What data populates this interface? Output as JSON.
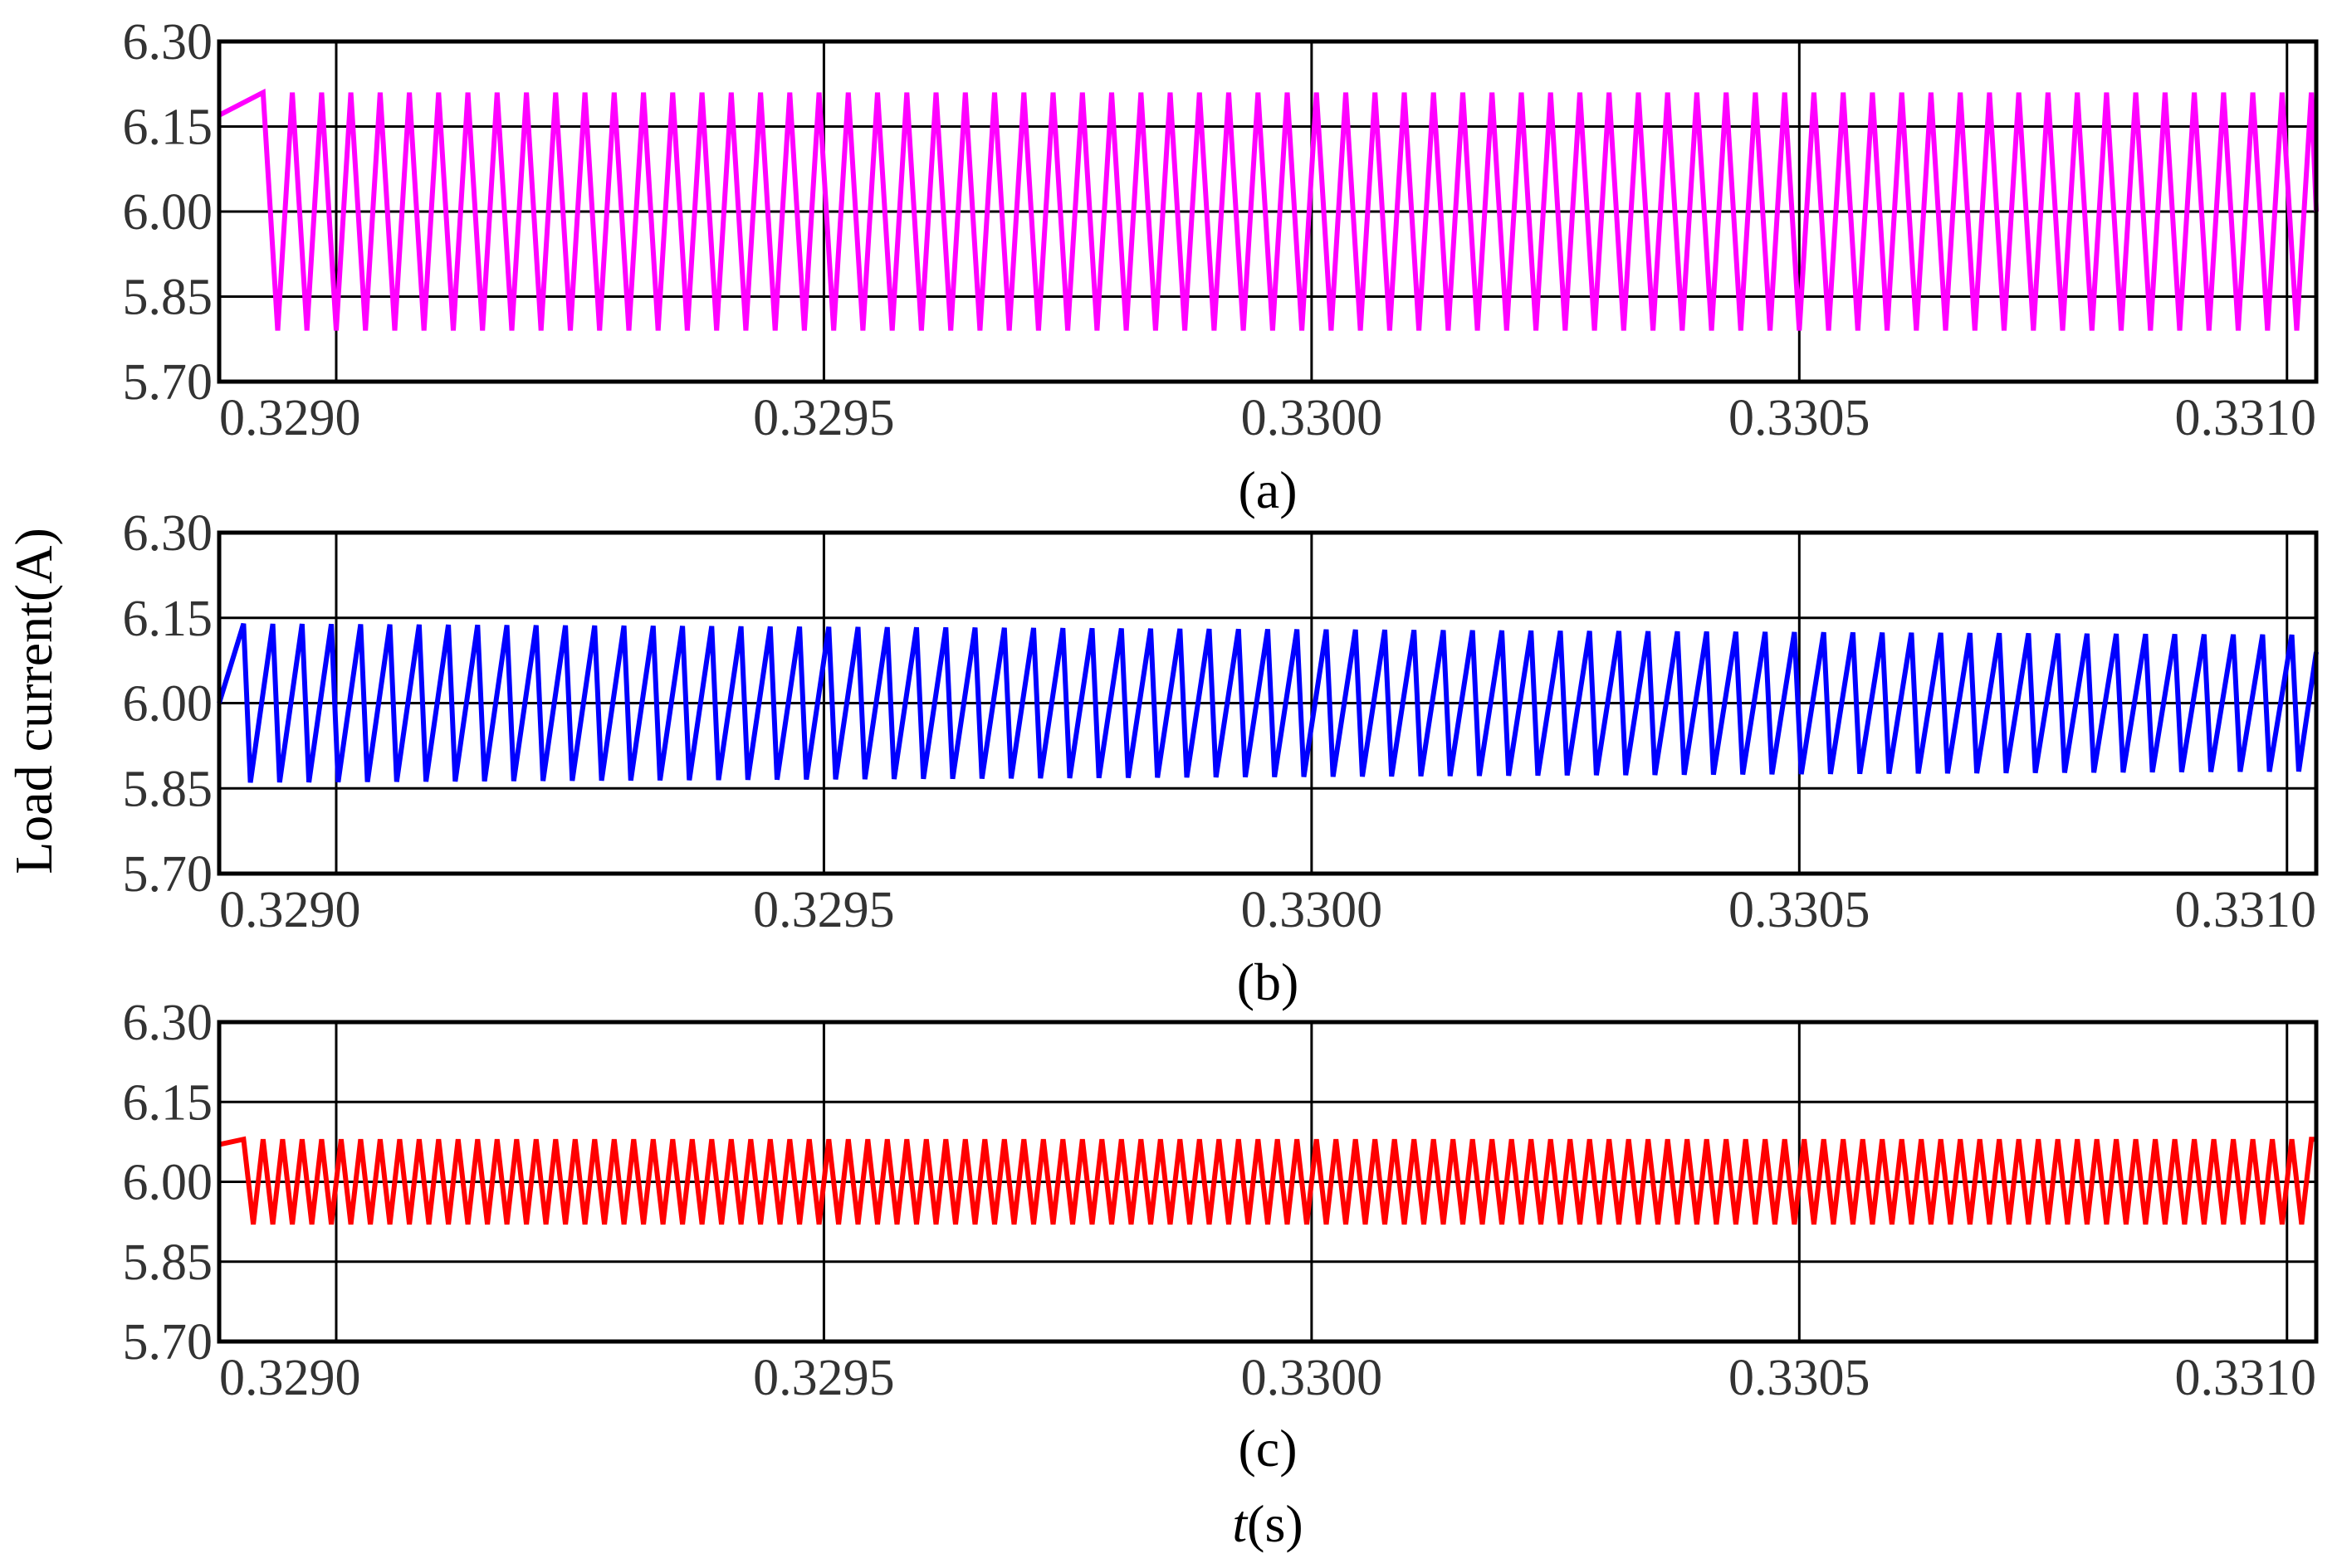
{
  "chart_data": [
    {
      "type": "line",
      "caption": "(a)",
      "xlim": [
        0.32888,
        0.33103
      ],
      "ylim": [
        5.7,
        6.3
      ],
      "xticks": [
        0.329,
        0.3295,
        0.33,
        0.3305,
        0.331
      ],
      "xtick_labels": [
        "0.3290",
        "0.3295",
        "0.3300",
        "0.3305",
        "0.3310"
      ],
      "yticks": [
        5.7,
        5.85,
        6.0,
        6.15,
        6.3
      ],
      "ytick_labels": [
        "5.70",
        "5.85",
        "6.00",
        "6.15",
        "6.30"
      ],
      "grid": true,
      "waveform": "triangular",
      "series": [
        {
          "color": "#ff00ff",
          "period_s": 3e-05,
          "max": 6.21,
          "min": 5.79,
          "first_peak_x": 0.328925,
          "x_start": 0.32888,
          "y_start": 6.17,
          "x_end": 0.33103,
          "y_end": 6.0
        }
      ]
    },
    {
      "type": "line",
      "caption": "(b)",
      "xlim": [
        0.32888,
        0.33103
      ],
      "ylim": [
        5.7,
        6.3
      ],
      "xticks": [
        0.329,
        0.3295,
        0.33,
        0.3305,
        0.331
      ],
      "xtick_labels": [
        "0.3290",
        "0.3295",
        "0.3300",
        "0.3305",
        "0.3310"
      ],
      "yticks": [
        5.7,
        5.85,
        6.0,
        6.15,
        6.3
      ],
      "ytick_labels": [
        "5.70",
        "5.85",
        "6.00",
        "6.15",
        "6.30"
      ],
      "grid": true,
      "waveform": "sawtooth",
      "series": [
        {
          "color": "#0000ff",
          "period_s": 3e-05,
          "max_start": 6.14,
          "max_end": 6.12,
          "min_start": 5.86,
          "min_end": 5.88,
          "first_peak_x": 0.328905,
          "fall_s": 7e-06,
          "x_start": 0.32888,
          "y_start": 6.0,
          "x_end": 0.33103,
          "y_end": 6.09
        }
      ]
    },
    {
      "type": "line",
      "caption": "(c)",
      "xlabel_italic": "t",
      "xlabel_unit": "(s)",
      "xlim": [
        0.32888,
        0.33103
      ],
      "ylim": [
        5.7,
        6.3
      ],
      "xticks": [
        0.329,
        0.3295,
        0.33,
        0.3305,
        0.331
      ],
      "xtick_labels": [
        "0.3290",
        "0.3295",
        "0.3300",
        "0.3305",
        "0.3310"
      ],
      "yticks": [
        5.7,
        5.85,
        6.0,
        6.15,
        6.3
      ],
      "ytick_labels": [
        "5.70",
        "5.85",
        "6.00",
        "6.15",
        "6.30"
      ],
      "grid": true,
      "waveform": "triangular",
      "series": [
        {
          "color": "#ff0000",
          "period_s": 2e-05,
          "max": 6.08,
          "min": 5.92,
          "first_peak_x": 0.328905,
          "x_start": 0.32888,
          "y_start": 6.07,
          "x_end": 0.33103,
          "y_end": 6.08
        }
      ]
    }
  ],
  "shared_ylabel": "Load current(A)"
}
